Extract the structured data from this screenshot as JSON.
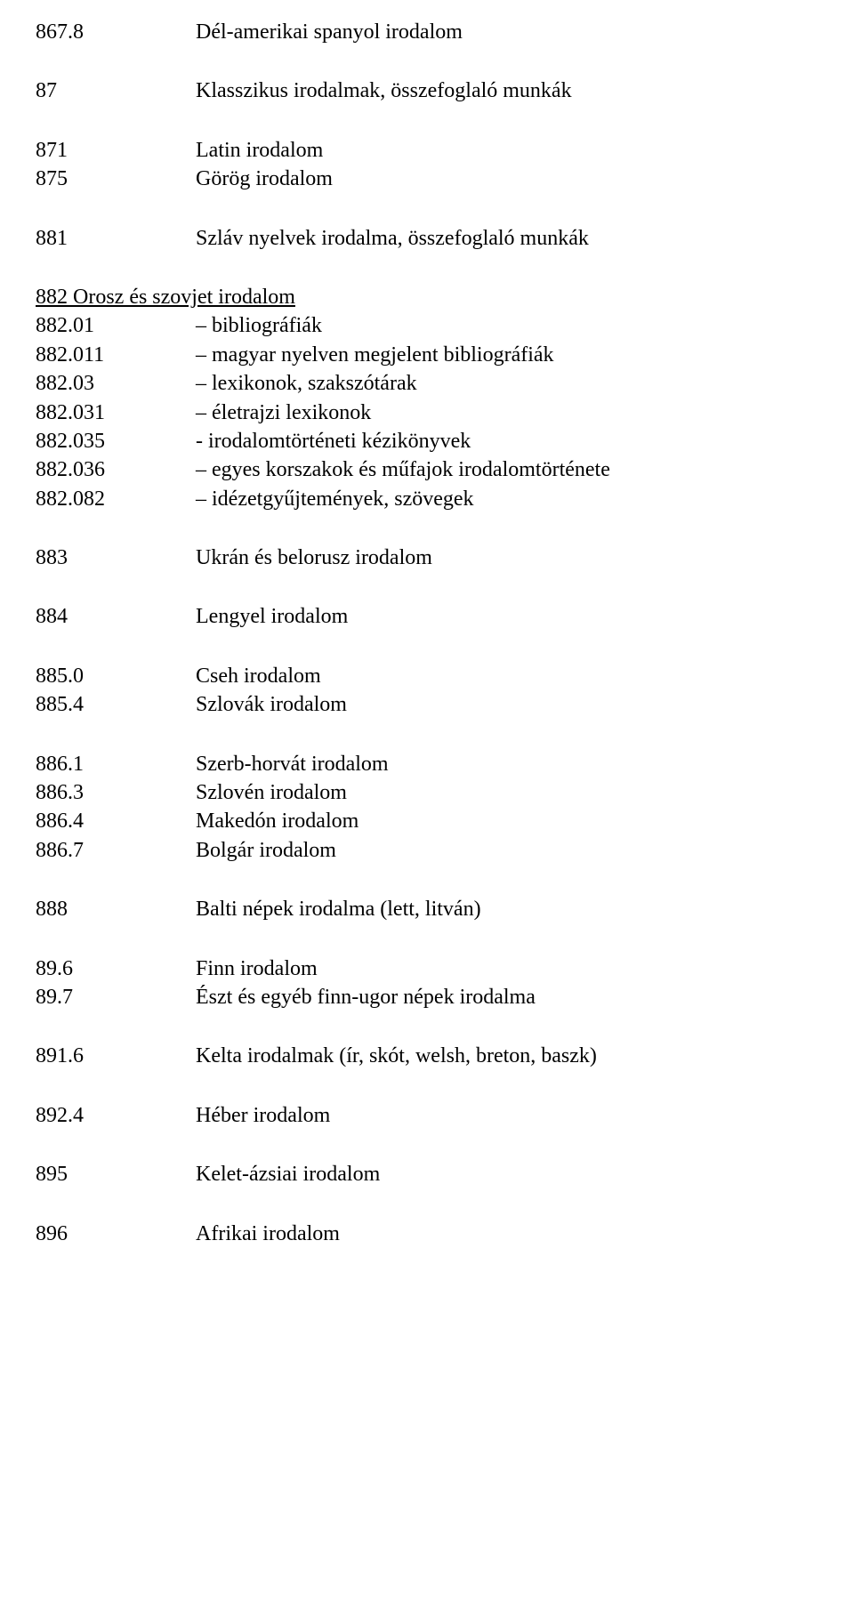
{
  "groups": [
    {
      "rows": [
        {
          "code": "867.8",
          "desc": "Dél-amerikai spanyol irodalom"
        }
      ]
    },
    {
      "rows": [
        {
          "code": "87",
          "desc": "Klasszikus irodalmak, összefoglaló munkák"
        }
      ]
    },
    {
      "rows": [
        {
          "code": "871",
          "desc": "Latin irodalom"
        },
        {
          "code": "875",
          "desc": "Görög irodalom"
        }
      ]
    },
    {
      "rows": [
        {
          "code": "881",
          "desc": "Szláv nyelvek irodalma, összefoglaló munkák"
        }
      ]
    },
    {
      "underline_first": true,
      "rows": [
        {
          "single": "882 Orosz és szovjet irodalom"
        },
        {
          "code": "882.01",
          "desc": "– bibliográfiák"
        },
        {
          "code": "882.011",
          "desc": "– magyar nyelven megjelent bibliográfiák"
        },
        {
          "code": "882.03",
          "desc": "– lexikonok, szakszótárak"
        },
        {
          "code": "882.031",
          "desc": "– életrajzi lexikonok"
        },
        {
          "code": "882.035",
          "desc": "- irodalomtörténeti kézikönyvek"
        },
        {
          "code": "882.036",
          "desc": "– egyes korszakok és műfajok irodalomtörténete"
        },
        {
          "code": "882.082",
          "desc": "– idézetgyűjtemények, szövegek"
        }
      ]
    },
    {
      "rows": [
        {
          "code": "883",
          "desc": "Ukrán és belorusz irodalom"
        }
      ]
    },
    {
      "rows": [
        {
          "code": "884",
          "desc": "Lengyel irodalom"
        }
      ]
    },
    {
      "rows": [
        {
          "code": "885.0",
          "desc": "Cseh irodalom"
        },
        {
          "code": "885.4",
          "desc": "Szlovák irodalom"
        }
      ]
    },
    {
      "rows": [
        {
          "code": "886.1",
          "desc": "Szerb-horvát irodalom"
        },
        {
          "code": "886.3",
          "desc": "Szlovén irodalom"
        },
        {
          "code": "886.4",
          "desc": "Makedón irodalom"
        },
        {
          "code": "886.7",
          "desc": "Bolgár irodalom"
        }
      ]
    },
    {
      "rows": [
        {
          "code": "888",
          "desc": "Balti népek irodalma (lett, litván)"
        }
      ]
    },
    {
      "rows": [
        {
          "code": "89.6",
          "desc": "Finn irodalom"
        },
        {
          "code": "89.7",
          "desc": "Észt és egyéb finn-ugor népek irodalma"
        }
      ]
    },
    {
      "rows": [
        {
          "code": "891.6",
          "desc": "Kelta irodalmak (ír, skót, welsh, breton, baszk)"
        }
      ]
    },
    {
      "rows": [
        {
          "code": "892.4",
          "desc": "Héber irodalom"
        }
      ]
    },
    {
      "rows": [
        {
          "code": "895",
          "desc": "Kelet-ázsiai irodalom"
        }
      ]
    },
    {
      "rows": [
        {
          "code": "896",
          "desc": "Afrikai irodalom"
        }
      ]
    }
  ]
}
